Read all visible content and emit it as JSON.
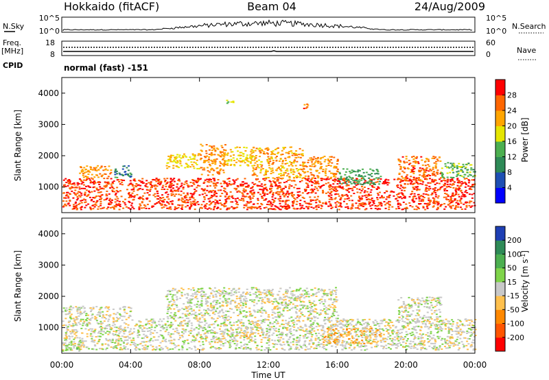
{
  "header": {
    "station": "Hokkaido (fitACF)",
    "beam": "Beam 04",
    "date": "24/Aug/2009"
  },
  "strip": {
    "nsky_label": "N.Sky",
    "nsky_ticks": [
      "10^5",
      "10^0"
    ],
    "nsearch_label": "N.Search",
    "nsearch_ticks": [
      "10^5",
      "10^0"
    ],
    "freq_label": "Freq.",
    "freq_unit": "[MHz]",
    "freq_ticks": [
      "18",
      "8"
    ],
    "nave_label": "Nave",
    "nave_ticks": [
      "60",
      "0"
    ],
    "cpid_label": "CPID",
    "cpid_value": "normal (fast) -151"
  },
  "chart_data": [
    {
      "type": "heatmap",
      "title": "",
      "xlabel": "Time UT",
      "ylabel": "Slant Range [km]",
      "x_ticks": [
        "00:00",
        "04:00",
        "08:00",
        "12:00",
        "16:00",
        "20:00",
        "00:00"
      ],
      "xlim": [
        0,
        24
      ],
      "y_ticks": [
        "1000",
        "2000",
        "3000",
        "4000"
      ],
      "ylim": [
        180,
        4500
      ],
      "colorbar": {
        "label": "Power [dB]",
        "ticks": [
          "28",
          "24",
          "20",
          "16",
          "12",
          "8",
          "4"
        ],
        "range": [
          0,
          32
        ],
        "colors": [
          "#0000ff",
          "#1e4fb4",
          "#2e8a57",
          "#4caf50",
          "#e5e500",
          "#ffa500",
          "#ff6600",
          "#ff0000"
        ]
      },
      "echo_regions": [
        {
          "x": [
            0.0,
            24.0
          ],
          "y": [
            300,
            1300
          ],
          "level": 28
        },
        {
          "x": [
            1.0,
            3.0
          ],
          "y": [
            1300,
            1700
          ],
          "level": 24
        },
        {
          "x": [
            3.0,
            4.0
          ],
          "y": [
            1300,
            1700
          ],
          "level": 10
        },
        {
          "x": [
            6.0,
            8.0
          ],
          "y": [
            1600,
            2100
          ],
          "level": 20
        },
        {
          "x": [
            8.0,
            9.5
          ],
          "y": [
            1400,
            2400
          ],
          "level": 24
        },
        {
          "x": [
            9.5,
            11.0
          ],
          "y": [
            1700,
            2300
          ],
          "level": 20
        },
        {
          "x": [
            11.0,
            14.0
          ],
          "y": [
            1300,
            2300
          ],
          "level": 22
        },
        {
          "x": [
            14.0,
            16.0
          ],
          "y": [
            1300,
            2000
          ],
          "level": 24
        },
        {
          "x": [
            16.0,
            18.5
          ],
          "y": [
            1100,
            1600
          ],
          "level": 12
        },
        {
          "x": [
            19.5,
            22.0
          ],
          "y": [
            1200,
            2000
          ],
          "level": 26
        },
        {
          "x": [
            22.0,
            24.0
          ],
          "y": [
            1300,
            1800
          ],
          "level": 14
        },
        {
          "x": [
            9.5,
            10.0
          ],
          "y": [
            3700,
            3800
          ],
          "level": 18
        },
        {
          "x": [
            14.0,
            14.3
          ],
          "y": [
            3500,
            3700
          ],
          "level": 26
        }
      ]
    },
    {
      "type": "heatmap",
      "title": "",
      "xlabel": "Time UT",
      "ylabel": "Slant Range [km]",
      "x_ticks": [
        "00:00",
        "04:00",
        "08:00",
        "12:00",
        "16:00",
        "20:00",
        "00:00"
      ],
      "xlim": [
        0,
        24
      ],
      "y_ticks": [
        "1000",
        "2000",
        "3000",
        "4000"
      ],
      "ylim": [
        180,
        4500
      ],
      "colorbar": {
        "label": "Velocity [m s^-1]",
        "ticks": [
          "200",
          "100",
          "50",
          "15",
          "-15",
          "-50",
          "-100",
          "-200"
        ],
        "range": [
          -250,
          250
        ],
        "colors": [
          "#ff0000",
          "#ff5500",
          "#ff8800",
          "#ffc04d",
          "#c8c8c8",
          "#7fd44a",
          "#4caf50",
          "#2e8a57",
          "#1e3fb4"
        ]
      },
      "echo_regions": [
        {
          "x": [
            0.0,
            24.0
          ],
          "y": [
            300,
            1300
          ],
          "level": 0
        },
        {
          "x": [
            0.0,
            4.0
          ],
          "y": [
            1300,
            1700
          ],
          "level": 0
        },
        {
          "x": [
            6.0,
            16.0
          ],
          "y": [
            1300,
            2300
          ],
          "level": 0
        },
        {
          "x": [
            10.0,
            11.5
          ],
          "y": [
            750,
            880
          ],
          "level": -60
        },
        {
          "x": [
            15.0,
            18.5
          ],
          "y": [
            500,
            1000
          ],
          "level": -60
        },
        {
          "x": [
            19.5,
            22.0
          ],
          "y": [
            1200,
            2000
          ],
          "level": 0
        },
        {
          "x": [
            0.0,
            1.0
          ],
          "y": [
            250,
            450
          ],
          "level": 30
        }
      ]
    }
  ]
}
